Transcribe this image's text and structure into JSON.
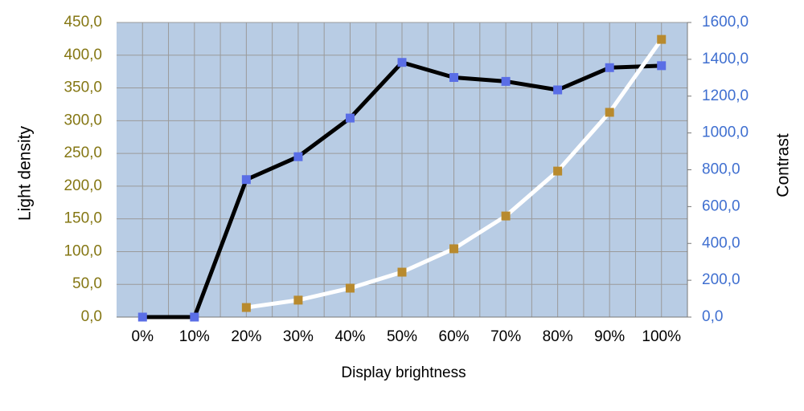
{
  "chart_data": {
    "type": "line",
    "x_label": "Display brightness",
    "y_label": "Light density",
    "y2_label": "Contrast",
    "categories": [
      "0%",
      "10%",
      "20%",
      "30%",
      "40%",
      "50%",
      "60%",
      "70%",
      "80%",
      "90%",
      "100%"
    ],
    "series": [
      {
        "color": "#000000",
        "marker_color": "#5a6ee6",
        "values": [
          0,
          0,
          210,
          245,
          304,
          389,
          366,
          360,
          347,
          381,
          384
        ]
      },
      {
        "color": "#ffffff",
        "marker_color": "#b88a2e",
        "axis": "y2",
        "values": [
          null,
          null,
          52,
          92,
          157,
          244,
          371,
          549,
          793,
          1112,
          1508
        ]
      }
    ],
    "ylim": [
      0,
      450
    ],
    "yticks": [
      {
        "value": 0,
        "label": "0,0"
      },
      {
        "value": 50,
        "label": "50,0"
      },
      {
        "value": 100,
        "label": "100,0"
      },
      {
        "value": 150,
        "label": "150,0"
      },
      {
        "value": 200,
        "label": "200,0"
      },
      {
        "value": 250,
        "label": "250,0"
      },
      {
        "value": 300,
        "label": "300,0"
      },
      {
        "value": 350,
        "label": "350,0"
      },
      {
        "value": 400,
        "label": "400,0"
      },
      {
        "value": 450,
        "label": "450,0"
      }
    ],
    "y2lim": [
      0,
      1600
    ],
    "y2ticks": [
      {
        "value": 0,
        "label": "0,0"
      },
      {
        "value": 200,
        "label": "200,0"
      },
      {
        "value": 400,
        "label": "400,0"
      },
      {
        "value": 600,
        "label": "600,0"
      },
      {
        "value": 800,
        "label": "800,0"
      },
      {
        "value": 1000,
        "label": "1000,0"
      },
      {
        "value": 1200,
        "label": "1200,0"
      },
      {
        "value": 1400,
        "label": "1400,0"
      },
      {
        "value": 1600,
        "label": "1600,0"
      }
    ],
    "grid": true,
    "background": "#b8cce4"
  }
}
